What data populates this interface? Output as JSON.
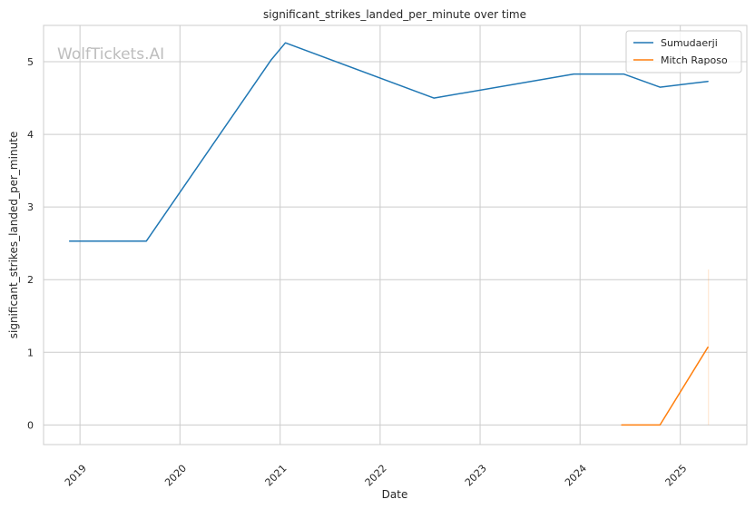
{
  "chart_data": {
    "type": "line",
    "title": "significant_strikes_landed_per_minute over time",
    "xlabel": "Date",
    "ylabel": "significant_strikes_landed_per_minute",
    "watermark": "WolfTickets.AI",
    "x_ticks": [
      "2019",
      "2020",
      "2021",
      "2022",
      "2023",
      "2024",
      "2025"
    ],
    "y_ticks": [
      "0",
      "1",
      "2",
      "3",
      "4",
      "5"
    ],
    "xlim": [
      "2018-08-21",
      "2025-09-01"
    ],
    "ylim": [
      -0.27,
      5.5
    ],
    "grid": true,
    "legend_position": "top-right",
    "series": [
      {
        "name": "Sumudaerji",
        "color": "#1f77b4",
        "points": [
          {
            "x": "2018-11-24",
            "y": 2.53
          },
          {
            "x": "2019-08-31",
            "y": 2.53
          },
          {
            "x": "2020-11-28",
            "y": 5.02
          },
          {
            "x": "2021-01-20",
            "y": 5.26
          },
          {
            "x": "2022-07-16",
            "y": 4.5
          },
          {
            "x": "2023-12-09",
            "y": 4.83
          },
          {
            "x": "2024-06-08",
            "y": 4.83
          },
          {
            "x": "2024-10-19",
            "y": 4.65
          },
          {
            "x": "2025-04-12",
            "y": 4.73
          }
        ]
      },
      {
        "name": "Mitch Raposo",
        "color": "#ff7f0e",
        "points": [
          {
            "x": "2024-06-01",
            "y": 0
          },
          {
            "x": "2024-10-19",
            "y": 0
          },
          {
            "x": "2025-04-12",
            "y": 1.07
          }
        ],
        "band": {
          "x": "2025-04-14",
          "low": 0,
          "high": 2.14
        }
      }
    ]
  }
}
